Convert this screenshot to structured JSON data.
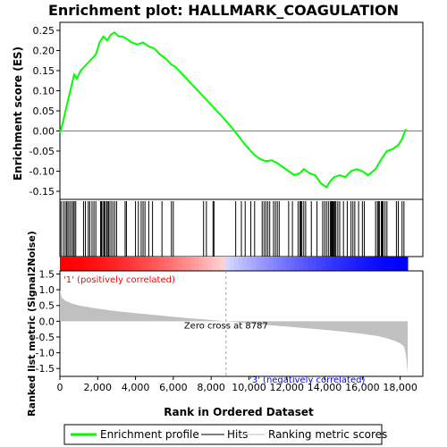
{
  "chart_data": {
    "type": "line",
    "title": "Enrichment plot: HALLMARK_COAGULATION",
    "panels": {
      "es": {
        "ylabel": "Enrichment score (ES)",
        "ylim": [
          -0.17,
          0.27
        ],
        "yticks": [
          "0.25",
          "0.20",
          "0.15",
          "0.10",
          "0.05",
          "0.00",
          "-0.05",
          "-0.10",
          "-0.15"
        ],
        "ytick_values": [
          0.25,
          0.2,
          0.15,
          0.1,
          0.05,
          0.0,
          -0.05,
          -0.1,
          -0.15
        ]
      },
      "metric": {
        "ylabel": "Ranked list metric (Signal2Noise)",
        "ylim": [
          -1.75,
          1.6
        ],
        "yticks": [
          "1.5",
          "1.0",
          "0.5",
          "0.0",
          "-0.5",
          "-1.0",
          "-1.5"
        ],
        "ytick_values": [
          1.5,
          1.0,
          0.5,
          0.0,
          -0.5,
          -1.0,
          -1.5
        ]
      }
    },
    "xlabel": "Rank in Ordered Dataset",
    "xlim": [
      0,
      19200
    ],
    "xticks": [
      "0",
      "2,000",
      "4,000",
      "6,000",
      "8,000",
      "10,000",
      "12,000",
      "14,000",
      "16,000",
      "18,000"
    ],
    "xtick_values": [
      0,
      2000,
      4000,
      6000,
      8000,
      10000,
      12000,
      14000,
      16000,
      18000
    ],
    "series": [
      {
        "name": "Enrichment profile",
        "color": "#00ff00",
        "x": [
          0,
          150,
          300,
          450,
          600,
          750,
          900,
          1100,
          1300,
          1500,
          1700,
          1900,
          2100,
          2300,
          2500,
          2700,
          2900,
          3100,
          3300,
          3500,
          3800,
          4100,
          4400,
          4700,
          5000,
          5300,
          5600,
          5900,
          6100,
          6400,
          6700,
          7000,
          7300,
          7600,
          7900,
          8200,
          8500,
          8787,
          9100,
          9400,
          9700,
          10000,
          10300,
          10600,
          10900,
          11200,
          11500,
          11800,
          12100,
          12400,
          12700,
          12900,
          13200,
          13500,
          13800,
          14100,
          14300,
          14500,
          14800,
          15100,
          15400,
          15700,
          16000,
          16300,
          16700,
          17000,
          17300,
          17600,
          17900,
          18100,
          18300
        ],
        "values": [
          -0.005,
          0.02,
          0.05,
          0.08,
          0.11,
          0.14,
          0.13,
          0.15,
          0.16,
          0.17,
          0.18,
          0.19,
          0.22,
          0.235,
          0.225,
          0.24,
          0.245,
          0.235,
          0.235,
          0.23,
          0.22,
          0.215,
          0.22,
          0.21,
          0.205,
          0.19,
          0.18,
          0.165,
          0.16,
          0.145,
          0.13,
          0.115,
          0.1,
          0.085,
          0.07,
          0.055,
          0.04,
          0.025,
          0.008,
          -0.01,
          -0.028,
          -0.045,
          -0.06,
          -0.07,
          -0.075,
          -0.073,
          -0.08,
          -0.09,
          -0.1,
          -0.11,
          -0.105,
          -0.095,
          -0.105,
          -0.11,
          -0.13,
          -0.14,
          -0.125,
          -0.115,
          -0.11,
          -0.115,
          -0.1,
          -0.095,
          -0.1,
          -0.11,
          -0.095,
          -0.07,
          -0.05,
          -0.045,
          -0.035,
          -0.02,
          0.005
        ]
      },
      {
        "name": "Hits",
        "color": "#000000",
        "positions": [
          60,
          180,
          280,
          360,
          430,
          520,
          610,
          700,
          760,
          840,
          1250,
          1350,
          1500,
          1580,
          1700,
          1800,
          1900,
          2150,
          2200,
          2270,
          2340,
          2400,
          2480,
          2550,
          2600,
          2700,
          2800,
          2900,
          3000,
          3450,
          3520,
          4000,
          4150,
          4300,
          4400,
          4500,
          4700,
          4900,
          5400,
          5900,
          6000,
          7600,
          7750,
          8100,
          8150,
          9300,
          9600,
          9800,
          10100,
          10300,
          10700,
          10800,
          10900,
          11000,
          11100,
          11300,
          11400,
          11500,
          11600,
          12100,
          12300,
          12600,
          12700,
          12750,
          12800,
          12900,
          13000,
          13300,
          13600,
          13900,
          14000,
          14100,
          14200,
          14300,
          14350,
          14400,
          14450,
          14500,
          14550,
          14600,
          14700,
          14800,
          15000,
          15200,
          15400,
          15500,
          15600,
          15800,
          16000,
          16100,
          16700,
          16800,
          16850,
          16900,
          17000,
          17050,
          17100,
          17200,
          17300,
          17800,
          17900,
          18100,
          18200
        ]
      },
      {
        "name": "Ranking metric scores",
        "color": "#c0c0c0",
        "x": [
          0,
          100,
          300,
          600,
          1000,
          2000,
          3000,
          4000,
          5000,
          6000,
          7000,
          8000,
          8787,
          10000,
          11000,
          12000,
          13000,
          14000,
          15000,
          16000,
          16800,
          17300,
          17700,
          18000,
          18200,
          18300,
          18400
        ],
        "values": [
          1.0,
          0.75,
          0.65,
          0.57,
          0.5,
          0.4,
          0.32,
          0.26,
          0.2,
          0.14,
          0.09,
          0.04,
          0.0,
          -0.07,
          -0.12,
          -0.17,
          -0.22,
          -0.27,
          -0.33,
          -0.4,
          -0.47,
          -0.54,
          -0.62,
          -0.7,
          -0.8,
          -1.05,
          -1.65
        ]
      }
    ],
    "annotations": {
      "zero_cross": "Zero cross at 8787",
      "zero_cross_x": 8787,
      "positive_label": "'1' (positively correlated)",
      "negative_label": "'3' (negatively correlated)",
      "positive_color": "#ff0000",
      "negative_color": "#0000ff"
    },
    "legend": {
      "placement": "bottom",
      "items": [
        {
          "label": "Enrichment profile",
          "color": "#00ff00",
          "kind": "line"
        },
        {
          "label": "Hits",
          "color": "#000000",
          "kind": "line"
        },
        {
          "label": "Ranking metric scores",
          "color": "#c0c0c0",
          "kind": "line"
        }
      ]
    }
  }
}
